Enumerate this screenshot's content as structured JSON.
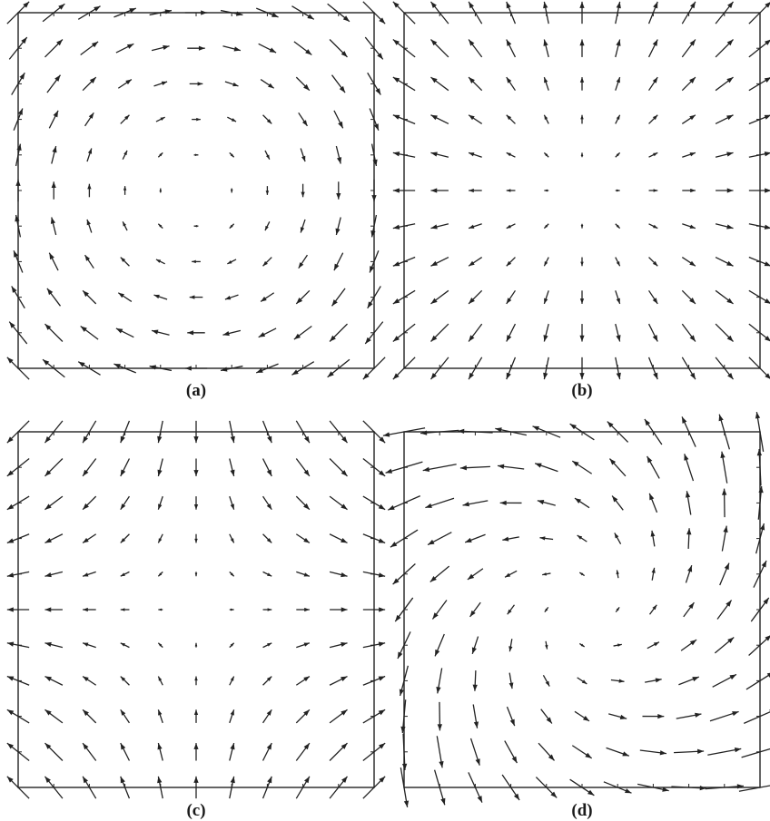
{
  "colors": {
    "arrow": "#222222",
    "frame": "#222222",
    "background": "#ffffff"
  },
  "panels": [
    {
      "id": "a",
      "caption": "(a)",
      "field": "vortex"
    },
    {
      "id": "b",
      "caption": "(b)",
      "field": "source"
    },
    {
      "id": "c",
      "caption": "(c)",
      "field": "saddle"
    },
    {
      "id": "d",
      "caption": "(d)",
      "field": "spiral-shear"
    }
  ]
}
